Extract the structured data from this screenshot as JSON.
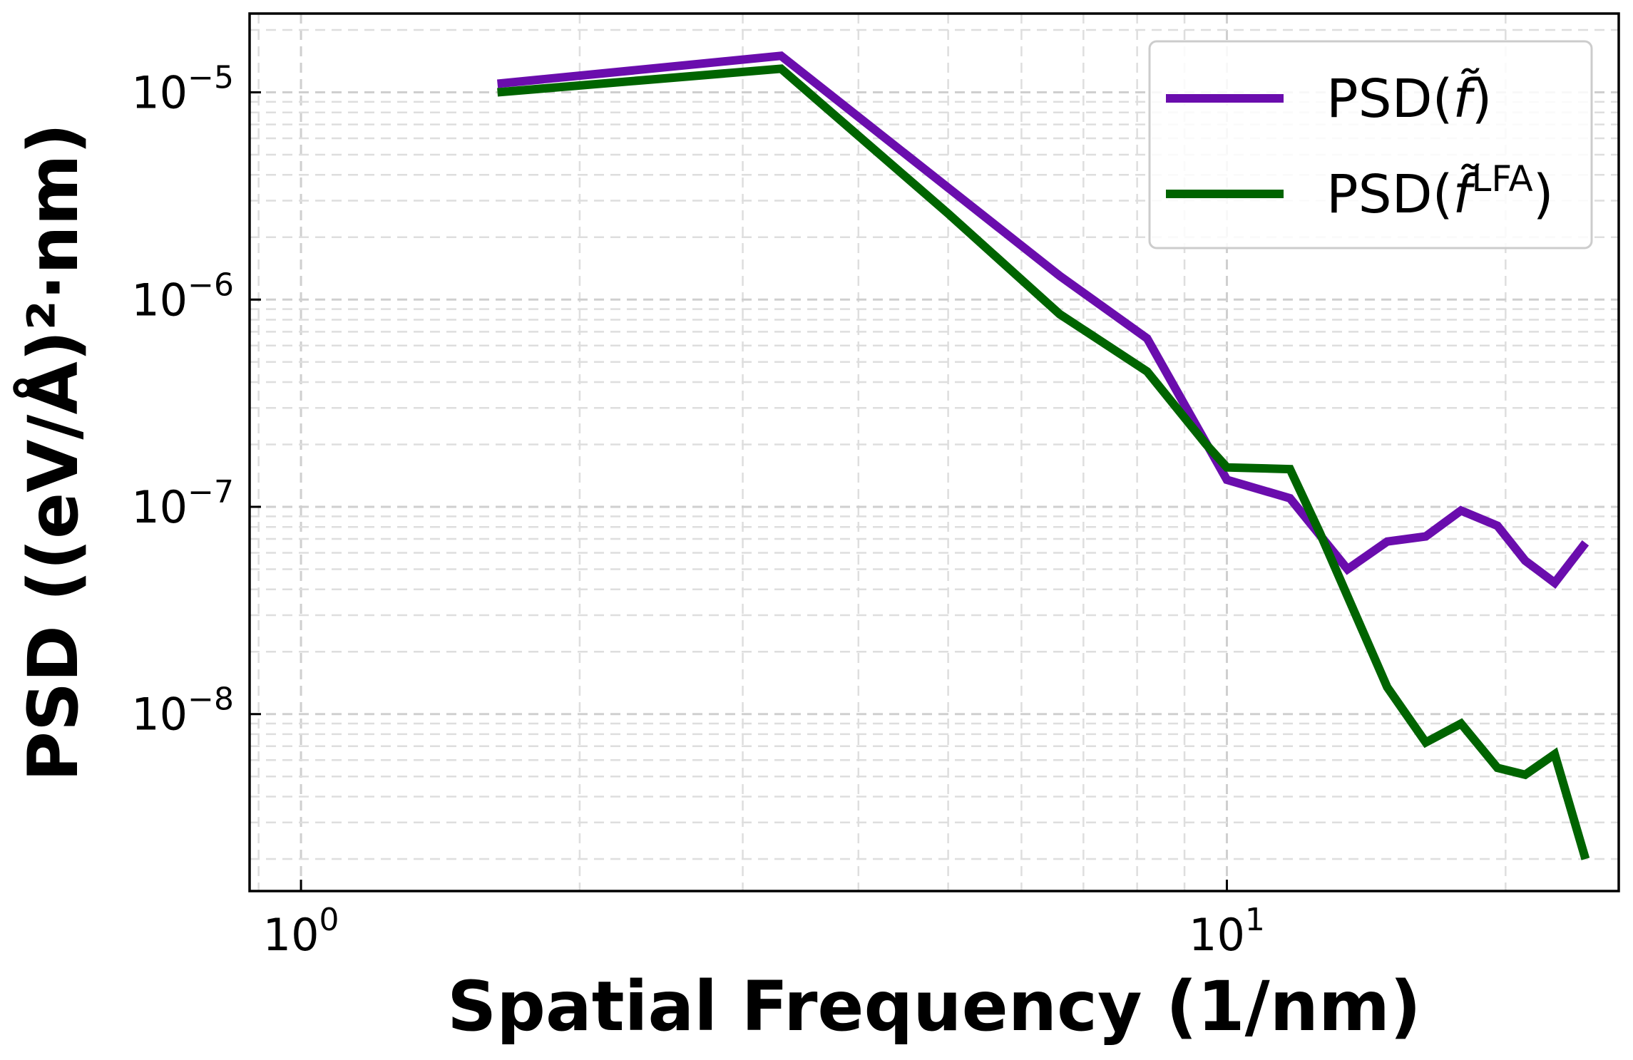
{
  "chart_data": {
    "type": "line",
    "x_scale": "log",
    "y_scale": "log",
    "xlabel": "Spatial Frequency (1/nm)",
    "ylabel": "PSD ((eV/Å)²·nm)",
    "xlim": [
      0.88,
      26.5
    ],
    "ylim": [
      1.4e-09,
      2.4e-05
    ],
    "grid": true,
    "legend_position": "top-right",
    "x_ticks": [
      {
        "value": 1,
        "base": "10",
        "exp": "0"
      },
      {
        "value": 10,
        "base": "10",
        "exp": "1"
      }
    ],
    "y_ticks": [
      {
        "value": 1e-08,
        "base": "10",
        "exp": "−8"
      },
      {
        "value": 1e-07,
        "base": "10",
        "exp": "−7"
      },
      {
        "value": 1e-06,
        "base": "10",
        "exp": "−6"
      },
      {
        "value": 1e-05,
        "base": "10",
        "exp": "−5"
      }
    ],
    "series": [
      {
        "name": "PSD(f̃)",
        "legend_main": "PSD(",
        "legend_italic": "f̃",
        "legend_sup": "",
        "legend_close": ")",
        "color": "#6a0dad",
        "x": [
          1.63,
          3.3,
          6.6,
          8.2,
          10.0,
          11.7,
          13.5,
          14.9,
          16.4,
          17.9,
          19.6,
          21.0,
          22.6,
          24.4
        ],
        "y": [
          1.1e-05,
          1.5e-05,
          1.3e-06,
          6.5e-07,
          1.35e-07,
          1.1e-07,
          5e-08,
          6.8e-08,
          7.2e-08,
          9.6e-08,
          8.1e-08,
          5.5e-08,
          4.3e-08,
          6.7e-08
        ]
      },
      {
        "name": "PSD(f̃LFA)",
        "legend_main": "PSD(",
        "legend_italic": "f̃",
        "legend_sup": "LFA",
        "legend_close": ")",
        "color": "#006400",
        "x": [
          1.63,
          3.3,
          5.0,
          6.6,
          8.2,
          9.5,
          10.0,
          11.7,
          12.6,
          14.9,
          16.4,
          17.9,
          19.6,
          21.0,
          22.6,
          24.4
        ],
        "y": [
          1e-05,
          1.3e-05,
          2.6e-06,
          8.5e-07,
          4.5e-07,
          2e-07,
          1.55e-07,
          1.52e-07,
          7.5e-08,
          1.35e-08,
          7.3e-09,
          9e-09,
          5.5e-09,
          5.1e-09,
          6.4e-09,
          2e-09
        ]
      }
    ]
  }
}
